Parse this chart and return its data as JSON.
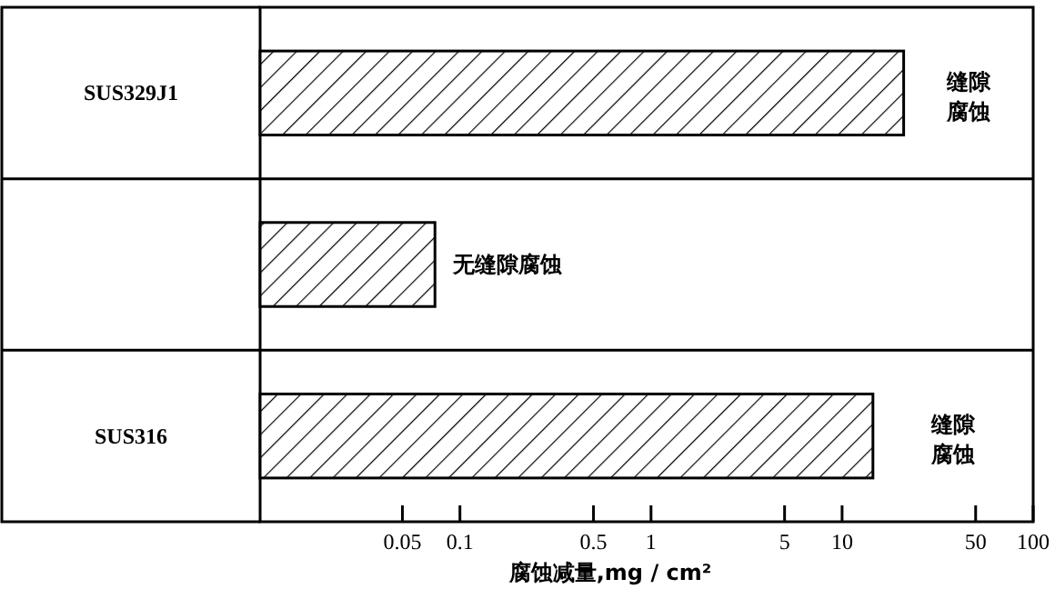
{
  "chart_data": {
    "type": "bar",
    "orientation": "horizontal",
    "categories": [
      "SUS329J1",
      null,
      "SUS316"
    ],
    "values": [
      21,
      0.074,
      14.5
    ],
    "color": "#000000",
    "log": "x",
    "xlim": [
      0.009,
      100
    ],
    "xticks": [
      0.05,
      0.1,
      0.5,
      1,
      5,
      10,
      50,
      100
    ],
    "xlabel": "腐蚀减量,mg / cm²",
    "grid": false,
    "annotations": [
      {
        "text": "缝隙腐蚀",
        "x": 21,
        "y": "SUS329J1"
      },
      {
        "text": "无缝隙腐蚀",
        "x": 0.074
      },
      {
        "text": "缝隙腐蚀",
        "x": 14.5,
        "y": "SUS316"
      }
    ]
  }
}
